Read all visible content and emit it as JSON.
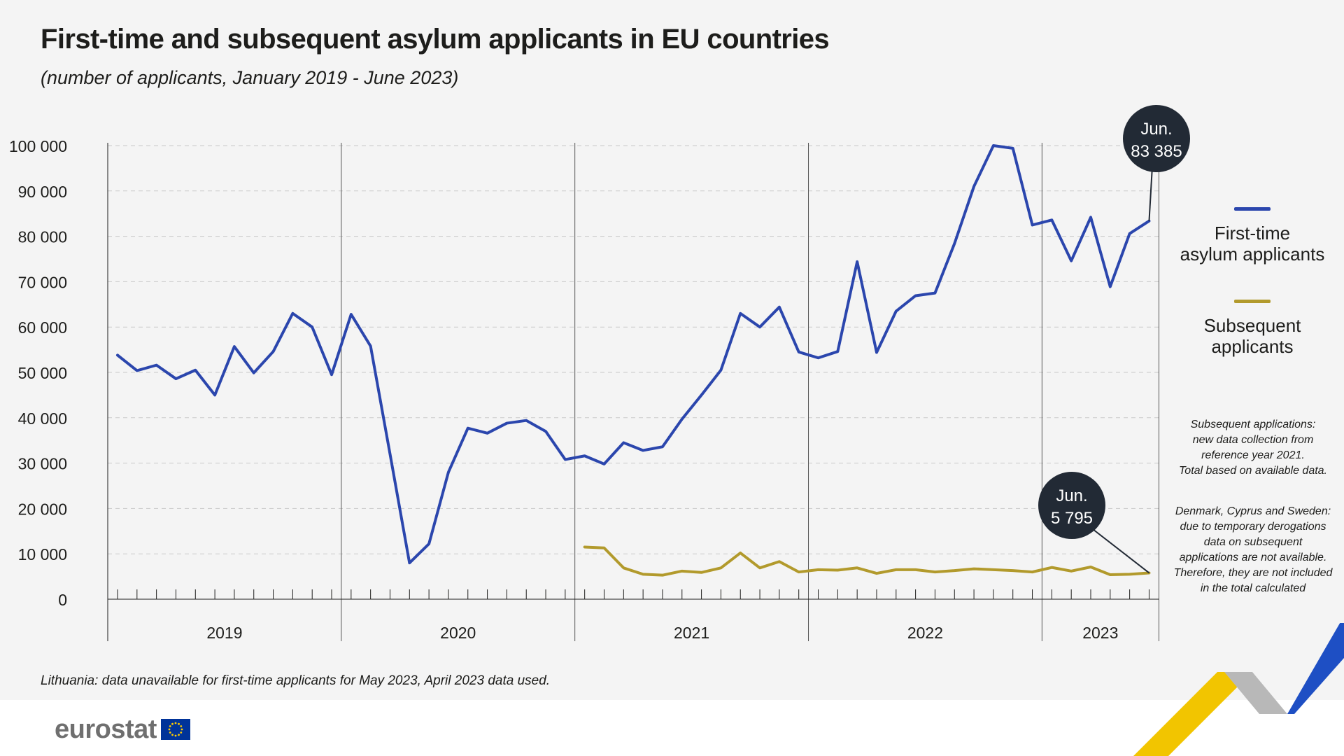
{
  "header": {
    "title": "First-time and subsequent asylum applicants in EU countries",
    "subtitle": "(number of applicants, January 2019 - June 2023)"
  },
  "chart_data": {
    "type": "line",
    "title": "First-time and subsequent asylum applicants in EU countries",
    "subtitle": "(number of applicants, January 2019 - June 2023)",
    "ylim": [
      0,
      100000
    ],
    "y_ticks": [
      0,
      10000,
      20000,
      30000,
      40000,
      50000,
      60000,
      70000,
      80000,
      90000,
      100000
    ],
    "y_tick_labels": [
      "0",
      "10 000",
      "20 000",
      "30 000",
      "40 000",
      "50 000",
      "60 000",
      "70 000",
      "80 000",
      "90 000",
      "100 000"
    ],
    "x_years": [
      "2019",
      "2020",
      "2021",
      "2022",
      "2023"
    ],
    "grid": "horizontal dashed",
    "legend_position": "right",
    "series": [
      {
        "name": "First-time asylum applicants",
        "color": "#2b46ad",
        "start": "2019-01",
        "values": [
          53800,
          50400,
          51600,
          48600,
          50500,
          45000,
          55700,
          49900,
          54600,
          63000,
          60000,
          49500,
          62800,
          55800,
          32000,
          8000,
          12200,
          28000,
          37700,
          36600,
          38800,
          39400,
          37000,
          30800,
          31600,
          29800,
          34500,
          32800,
          33600,
          39700,
          45000,
          50500,
          63000,
          60000,
          64400,
          54500,
          53200,
          54600,
          74400,
          54400,
          63500,
          66900,
          67500,
          78400,
          91000,
          100000,
          99400,
          82500,
          83600,
          74600,
          84200,
          68900,
          80600,
          83385
        ]
      },
      {
        "name": "Subsequent applicants",
        "color": "#b29a2c",
        "start": "2021-01",
        "values": [
          11500,
          11300,
          6900,
          5500,
          5300,
          6200,
          5900,
          6900,
          10200,
          6900,
          8300,
          6000,
          6500,
          6400,
          6900,
          5700,
          6500,
          6500,
          6000,
          6300,
          6700,
          6500,
          6300,
          6000,
          7000,
          6200,
          7100,
          5400,
          5500,
          5795
        ]
      }
    ],
    "callouts": [
      {
        "series": "First-time asylum applicants",
        "line1": "Jun.",
        "line2": "83 385"
      },
      {
        "series": "Subsequent applicants",
        "line1": "Jun.",
        "line2": "5 795"
      }
    ]
  },
  "legend": {
    "first_time_line1": "First-time",
    "first_time_line2": "asylum applicants",
    "subsequent_line1": "Subsequent",
    "subsequent_line2": "applicants"
  },
  "notes": {
    "subsequent_note": [
      "Subsequent applications:",
      "new data collection from",
      "reference year 2021.",
      "Total based on available data."
    ],
    "derogation_note": [
      "Denmark, Cyprus and Sweden:",
      "due to temporary derogations",
      "data on subsequent",
      "applications are not available.",
      "Therefore, they are not included",
      "in the total calculated"
    ]
  },
  "footnote": "Lithuania: data unavailable for first-time applicants for May 2023, April 2023 data used.",
  "logo": {
    "text": "eurostat"
  },
  "colors": {
    "panel_bg": "#f4f4f4",
    "callout_bg": "#222a35",
    "accent_yellow": "#f2c500",
    "accent_blue": "#1e4fc4"
  }
}
